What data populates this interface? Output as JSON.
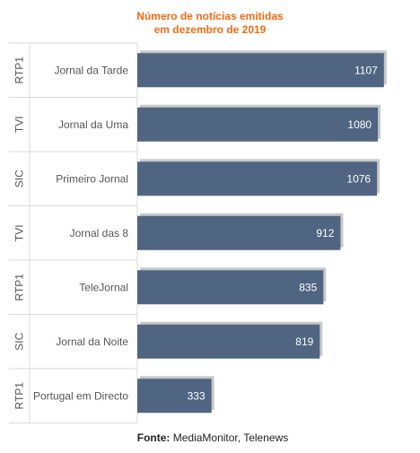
{
  "colors": {
    "title": "#f06a0f",
    "bar": "#4f6582",
    "bar_shadow": "#c8c8c8",
    "value_label": "#ffffff",
    "group_label": "#555555",
    "row_label": "#555555",
    "grid": "#d9d9d9"
  },
  "chart_data": {
    "type": "bar",
    "orientation": "horizontal",
    "title_lines": [
      "Número de notícias emitidas",
      "em dezembro de 2019"
    ],
    "groups": [
      "RTP1",
      "TVI",
      "SIC",
      "TVI",
      "RTP1",
      "SIC",
      "RTP1"
    ],
    "categories": [
      "Jornal da Tarde",
      "Jornal da Uma",
      "Primeiro Jornal",
      "Jornal das 8",
      "TeleJornal",
      "Jornal da Noite",
      "Portugal em Directo"
    ],
    "values": [
      1107,
      1080,
      1076,
      912,
      835,
      819,
      333
    ],
    "xlabel": "",
    "ylabel": "",
    "xlim": [
      0,
      1140
    ],
    "grid": false,
    "data_labels": true
  },
  "source": {
    "label": "Fonte:",
    "text": " MediaMonitor, Telenews"
  }
}
